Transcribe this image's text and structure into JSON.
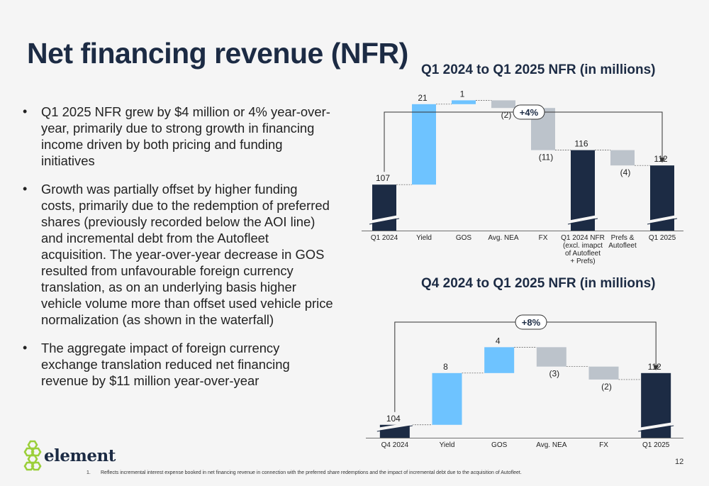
{
  "title": "Net financing revenue (NFR)",
  "bullets": [
    "Q1 2025 NFR grew by $4 million or 4% year-over-year, primarily due to strong growth in financing income driven by both pricing and funding initiatives",
    "Growth was partially offset by higher funding costs, primarily due to the redemption of preferred shares (previously recorded below the AOI line) and incremental debt from the Autofleet acquisition. The year-over-year decrease in GOS resulted from unfavourable foreign currency translation, as on an underlying basis higher vehicle volume more than offset used vehicle price normalization (as shown in the waterfall)",
    "The aggregate impact of foreign currency exchange translation reduced net financing revenue by $11 million year-over-year"
  ],
  "colors": {
    "total": "#1c2b44",
    "increase": "#6ec3ff",
    "decrease": "#bcc3cb",
    "title": "#1c2b44"
  },
  "chart_data": [
    {
      "type": "waterfall",
      "title": "Q1 2024 to Q1 2025 NFR (in millions)",
      "change_label": "+4%",
      "categories": [
        [
          "Q1 2024"
        ],
        [
          "Yield"
        ],
        [
          "GOS"
        ],
        [
          "Avg. NEA"
        ],
        [
          "FX"
        ],
        [
          "Q1 2024 NFR",
          "(excl. imapct",
          "of Autofleet",
          "+ Prefs)"
        ],
        [
          "Prefs &",
          "Autofleet"
        ],
        [
          "Q1 2025"
        ]
      ],
      "values": [
        107,
        21,
        1,
        -2,
        -11,
        116,
        -4,
        112
      ],
      "value_labels": [
        "107",
        "21",
        "1",
        "(2)",
        "(11)",
        "116",
        "(4)",
        "112"
      ],
      "kinds": [
        "total",
        "increase",
        "increase",
        "decrease",
        "decrease",
        "total",
        "decrease",
        "total"
      ],
      "ylim": [
        95,
        125
      ]
    },
    {
      "type": "waterfall",
      "title": "Q4 2024 to Q1 2025 NFR (in millions)",
      "change_label": "+8%",
      "categories": [
        [
          "Q4 2024"
        ],
        [
          "Yield"
        ],
        [
          "GOS"
        ],
        [
          "Avg. NEA"
        ],
        [
          "FX"
        ],
        [
          "Q1 2025"
        ]
      ],
      "values": [
        104,
        8,
        4,
        -3,
        -2,
        112
      ],
      "value_labels": [
        "104",
        "8",
        "4",
        "(3)",
        "(2)",
        "112"
      ],
      "kinds": [
        "total",
        "increase",
        "increase",
        "decrease",
        "decrease",
        "total"
      ],
      "ylim": [
        102,
        119
      ]
    }
  ],
  "logo": {
    "text": "element"
  },
  "page_number": "12",
  "footnote": {
    "number": "1.",
    "text": "Reflects incremental interest expense booked in net financing revenue in connection with the preferred share redemptions and the impact of incremental debt due to the acquisition of Autofleet."
  }
}
